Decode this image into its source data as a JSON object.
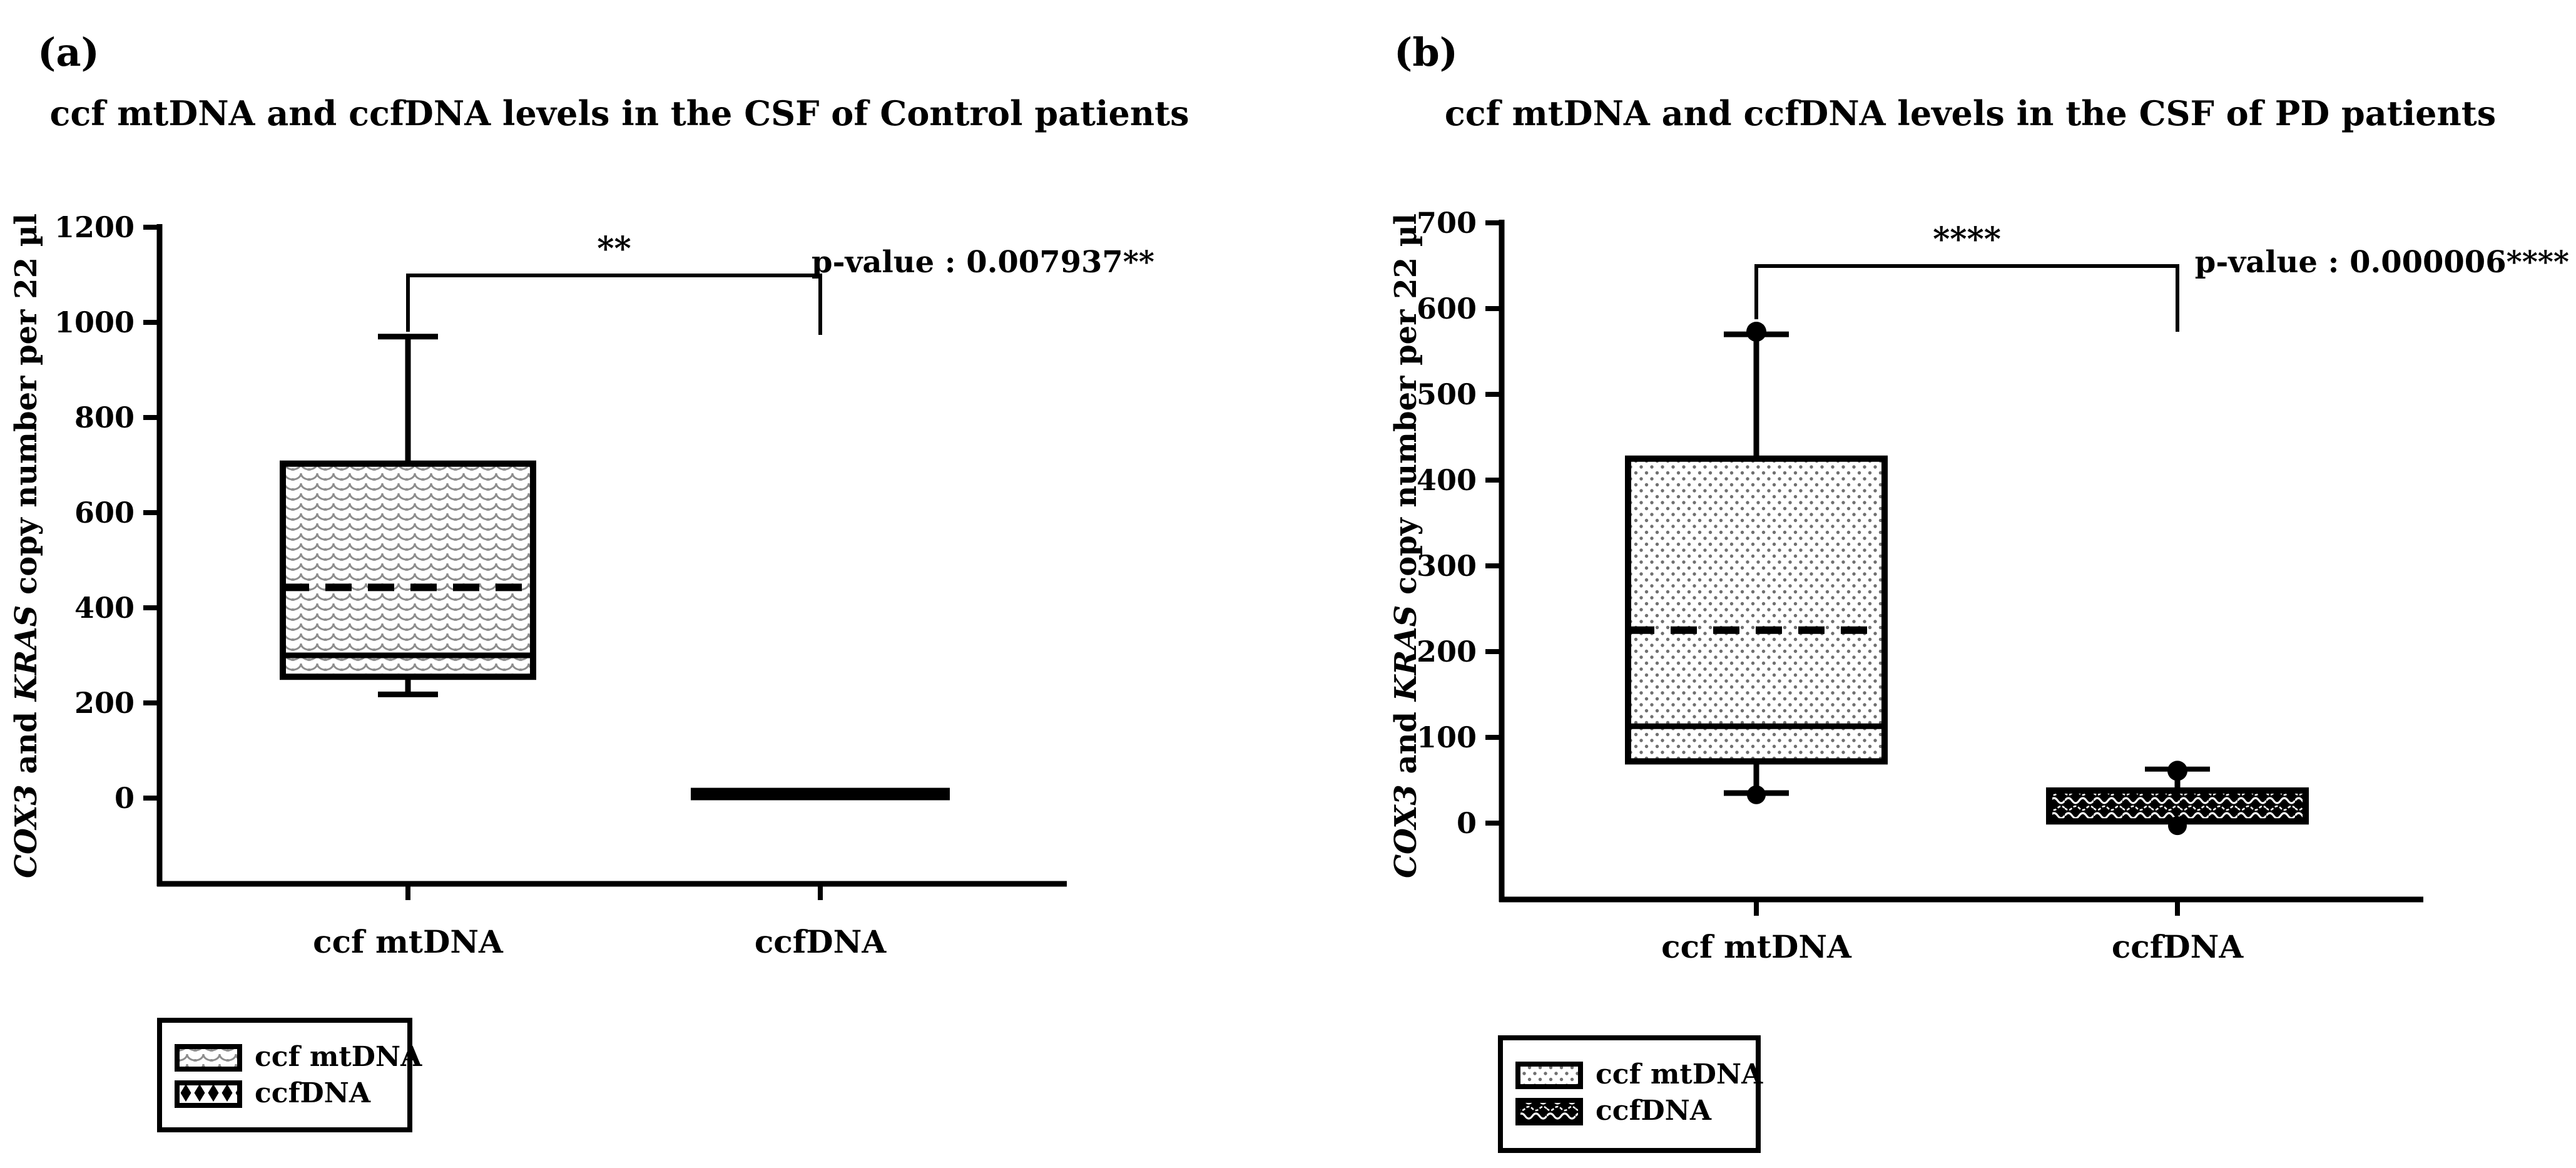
{
  "figure": {
    "background": "#ffffff",
    "text_color": "#000000",
    "pattern_gray": "#8d8d8d",
    "dot_gray": "#707070"
  },
  "chart_data": [
    {
      "type": "box",
      "panel": "a",
      "panel_label": "(a)",
      "title": "ccf mtDNA and ccfDNA levels in the CSF of Control patients",
      "ylabel": "COX3 and KRAS copy number per 22 µl",
      "ylabel_parts": [
        {
          "text": "COX3",
          "italic": true
        },
        {
          "text": " and ",
          "italic": false
        },
        {
          "text": "KRAS",
          "italic": true
        },
        {
          "text": " copy number per 22 µl",
          "italic": false
        }
      ],
      "ylim": [
        0,
        1200
      ],
      "yticks": [
        0,
        200,
        400,
        600,
        800,
        1000,
        1200
      ],
      "grid": false,
      "categories": [
        "ccf mtDNA",
        "ccfDNA"
      ],
      "significance": {
        "label": "**",
        "between": [
          "ccf mtDNA",
          "ccfDNA"
        ]
      },
      "p_value_text": "p-value : 0.007937**",
      "boxes": [
        {
          "category": "ccf mtDNA",
          "fill": "scale",
          "whisker_low": 218,
          "q1": 255,
          "median": 300,
          "mean": 443,
          "q3": 703,
          "whisker_high": 970
        },
        {
          "category": "ccfDNA",
          "fill": "black",
          "q1": 2,
          "median": 8,
          "q3": 15
        }
      ],
      "legend": {
        "position": "bottom-left",
        "entries": [
          {
            "label": "ccf mtDNA",
            "fill": "scale"
          },
          {
            "label": "ccfDNA",
            "fill": "diamond"
          }
        ]
      }
    },
    {
      "type": "box",
      "panel": "b",
      "panel_label": "(b)",
      "title": "ccf mtDNA and ccfDNA levels in the CSF of PD patients",
      "ylabel": "COX3 and KRAS copy number per 22 µl",
      "ylabel_parts": [
        {
          "text": "COX3",
          "italic": true
        },
        {
          "text": " and ",
          "italic": false
        },
        {
          "text": "KRAS",
          "italic": true
        },
        {
          "text": " copy number per 22 µl",
          "italic": false
        }
      ],
      "ylim": [
        0,
        700
      ],
      "yticks": [
        0,
        100,
        200,
        300,
        400,
        500,
        600,
        700
      ],
      "grid": false,
      "categories": [
        "ccf mtDNA",
        "ccfDNA"
      ],
      "significance": {
        "label": "****",
        "between": [
          "ccf mtDNA",
          "ccfDNA"
        ]
      },
      "p_value_text": "p-value : 0.000006****",
      "boxes": [
        {
          "category": "ccf mtDNA",
          "fill": "dots",
          "outlier_low": 33,
          "whisker_low": 35,
          "q1": 72,
          "median": 113,
          "mean": 225,
          "q3": 425,
          "whisker_high": 570,
          "outlier_high": 573
        },
        {
          "category": "ccfDNA",
          "fill": "wave",
          "q1": 2,
          "median": 20,
          "q3": 38,
          "outlier_high": 61,
          "cap_high": 63,
          "outlier_low": -3
        }
      ],
      "legend": {
        "position": "bottom-left",
        "entries": [
          {
            "label": "ccf mtDNA",
            "fill": "dots"
          },
          {
            "label": "ccfDNA",
            "fill": "wave"
          }
        ]
      }
    }
  ]
}
